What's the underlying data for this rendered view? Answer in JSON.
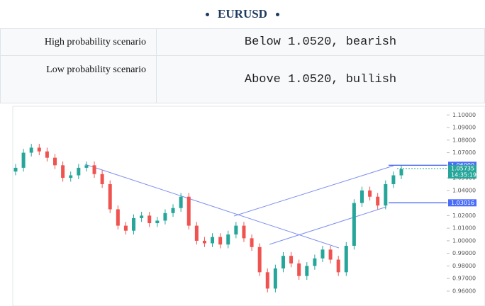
{
  "header": {
    "title": "EURUSD"
  },
  "table": {
    "rows": [
      [
        "High probability scenario",
        "Below 1.0520, bearish"
      ],
      [
        "Low probability scenario",
        "Above 1.0520, bullish"
      ]
    ]
  },
  "chart_data": {
    "type": "candlestick",
    "up_color": "#26a69a",
    "down_color": "#ef5350",
    "open": [
      1.055,
      1.058,
      1.07,
      1.074,
      1.071,
      1.066,
      1.06,
      1.05,
      1.052,
      1.058,
      1.06,
      1.053,
      1.045,
      1.025,
      1.012,
      1.008,
      1.018,
      1.02,
      1.014,
      1.016,
      1.022,
      1.026,
      1.035,
      1.012,
      1.0,
      0.998,
      1.003,
      0.997,
      1.005,
      1.012,
      1.002,
      0.995,
      0.975,
      0.962,
      0.978,
      0.988,
      0.982,
      0.972,
      0.98,
      0.986,
      0.993,
      0.985,
      0.975,
      0.996,
      1.03,
      1.04,
      1.035,
      1.028,
      1.045,
      1.052
    ],
    "high": [
      1.061,
      1.073,
      1.077,
      1.077,
      1.074,
      1.069,
      1.063,
      1.055,
      1.061,
      1.063,
      1.063,
      1.056,
      1.048,
      1.028,
      1.015,
      1.021,
      1.023,
      1.023,
      1.019,
      1.025,
      1.029,
      1.038,
      1.038,
      1.015,
      1.003,
      1.006,
      1.006,
      1.008,
      1.015,
      1.015,
      1.005,
      0.998,
      0.978,
      0.981,
      0.991,
      0.991,
      0.985,
      0.983,
      0.989,
      0.996,
      0.996,
      0.988,
      0.999,
      1.033,
      1.043,
      1.043,
      1.038,
      1.048,
      1.055,
      1.06
    ],
    "low": [
      1.052,
      1.055,
      1.067,
      1.068,
      1.063,
      1.057,
      1.047,
      1.047,
      1.049,
      1.055,
      1.05,
      1.042,
      1.022,
      1.009,
      1.005,
      1.005,
      1.015,
      1.011,
      1.011,
      1.013,
      1.019,
      1.023,
      1.009,
      0.997,
      0.995,
      0.995,
      0.994,
      0.994,
      1.002,
      0.999,
      0.992,
      0.972,
      0.959,
      0.959,
      0.975,
      0.979,
      0.969,
      0.969,
      0.977,
      0.983,
      0.982,
      0.972,
      0.972,
      0.993,
      1.027,
      1.032,
      1.025,
      1.025,
      1.042,
      1.049
    ],
    "close": [
      1.058,
      1.07,
      1.074,
      1.071,
      1.066,
      1.06,
      1.05,
      1.052,
      1.058,
      1.06,
      1.053,
      1.045,
      1.025,
      1.012,
      1.008,
      1.018,
      1.02,
      1.014,
      1.016,
      1.022,
      1.026,
      1.035,
      1.012,
      1.0,
      0.998,
      1.003,
      0.997,
      1.005,
      1.012,
      1.002,
      0.995,
      0.975,
      0.962,
      0.978,
      0.988,
      0.982,
      0.972,
      0.98,
      0.986,
      0.993,
      0.985,
      0.975,
      0.996,
      1.03,
      1.04,
      1.035,
      1.028,
      1.045,
      1.052,
      1.057
    ],
    "ylim": [
      0.9521,
      1.1024
    ],
    "yticks": [
      {
        "value": 0.96,
        "label": "0.96000"
      },
      {
        "value": 0.97,
        "label": "0.97000"
      },
      {
        "value": 0.98,
        "label": "0.98000"
      },
      {
        "value": 0.99,
        "label": "0.99000"
      },
      {
        "value": 1.0,
        "label": "1.00000"
      },
      {
        "value": 1.01,
        "label": "1.01000"
      },
      {
        "value": 1.02,
        "label": "1.02000"
      },
      {
        "value": 1.03,
        "label": "1.03000"
      },
      {
        "value": 1.04,
        "label": "1.04000"
      },
      {
        "value": 1.05,
        "label": "1.05000"
      },
      {
        "value": 1.06,
        "label": "1.06000"
      },
      {
        "value": 1.07,
        "label": "1.07000"
      },
      {
        "value": 1.08,
        "label": "1.08000"
      },
      {
        "value": 1.09,
        "label": "1.09000"
      },
      {
        "value": 1.1,
        "label": "1.10000"
      }
    ],
    "price_levels": [
      {
        "value": 1.06,
        "label": "1.06000",
        "color": "#4a6cf7"
      },
      {
        "value": 1.03016,
        "label": "1.03016",
        "color": "#4a6cf7"
      }
    ],
    "current_price": {
      "value": 1.05735,
      "label": "1.05735",
      "time": "14:35:19",
      "color": "#26a69a"
    }
  }
}
